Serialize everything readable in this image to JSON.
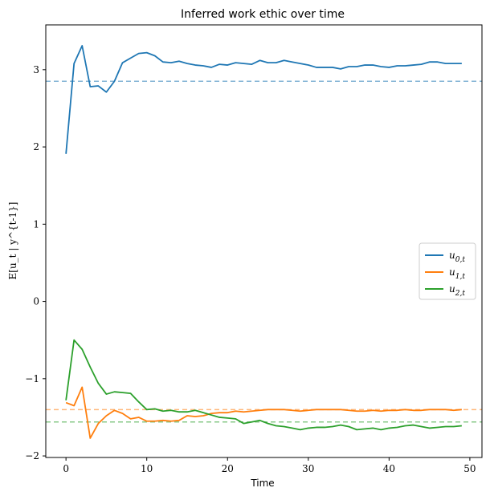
{
  "chart_data": {
    "type": "line",
    "title": "Inferred work ethic over time",
    "xlabel": "Time",
    "ylabel": "E[u_t | y^{t-1}]",
    "xlim": [
      -2.5,
      51.5
    ],
    "ylim": [
      -2.02,
      3.58
    ],
    "xticks": [
      0,
      10,
      20,
      30,
      40,
      50
    ],
    "yticks": [
      -2,
      -1,
      0,
      1,
      2,
      3
    ],
    "xtick_labels": [
      "0",
      "10",
      "20",
      "30",
      "40",
      "50"
    ],
    "ytick_labels": [
      "−2",
      "−1",
      "0",
      "1",
      "2",
      "3"
    ],
    "grid": false,
    "legend_position": "center-right",
    "x": [
      0,
      1,
      2,
      3,
      4,
      5,
      6,
      7,
      8,
      9,
      10,
      11,
      12,
      13,
      14,
      15,
      16,
      17,
      18,
      19,
      20,
      21,
      22,
      23,
      24,
      25,
      26,
      27,
      28,
      29,
      30,
      31,
      32,
      33,
      34,
      35,
      36,
      37,
      38,
      39,
      40,
      41,
      42,
      43,
      44,
      45,
      46,
      47,
      48,
      49
    ],
    "series": [
      {
        "name": "u_{0,t}",
        "color": "#1f77b4",
        "values": [
          1.91,
          3.08,
          3.31,
          2.78,
          2.79,
          2.71,
          2.85,
          3.09,
          3.15,
          3.21,
          3.22,
          3.18,
          3.1,
          3.09,
          3.11,
          3.08,
          3.06,
          3.05,
          3.03,
          3.07,
          3.06,
          3.09,
          3.08,
          3.07,
          3.12,
          3.09,
          3.09,
          3.12,
          3.1,
          3.08,
          3.06,
          3.03,
          3.03,
          3.03,
          3.01,
          3.04,
          3.04,
          3.06,
          3.06,
          3.04,
          3.03,
          3.05,
          3.05,
          3.06,
          3.07,
          3.1,
          3.1,
          3.08,
          3.08,
          3.08
        ]
      },
      {
        "name": "u_{1,t}",
        "color": "#ff7f0e",
        "values": [
          -1.31,
          -1.35,
          -1.11,
          -1.77,
          -1.58,
          -1.48,
          -1.41,
          -1.45,
          -1.52,
          -1.5,
          -1.55,
          -1.55,
          -1.54,
          -1.55,
          -1.54,
          -1.48,
          -1.49,
          -1.48,
          -1.45,
          -1.44,
          -1.44,
          -1.42,
          -1.43,
          -1.42,
          -1.41,
          -1.4,
          -1.4,
          -1.4,
          -1.41,
          -1.42,
          -1.41,
          -1.4,
          -1.4,
          -1.4,
          -1.4,
          -1.41,
          -1.42,
          -1.42,
          -1.41,
          -1.42,
          -1.41,
          -1.41,
          -1.4,
          -1.41,
          -1.41,
          -1.4,
          -1.4,
          -1.4,
          -1.41,
          -1.4
        ]
      },
      {
        "name": "u_{2,t}",
        "color": "#2ca02c",
        "values": [
          -1.28,
          -0.5,
          -0.62,
          -0.85,
          -1.06,
          -1.2,
          -1.17,
          -1.18,
          -1.19,
          -1.3,
          -1.4,
          -1.39,
          -1.42,
          -1.41,
          -1.43,
          -1.43,
          -1.41,
          -1.44,
          -1.47,
          -1.5,
          -1.51,
          -1.52,
          -1.58,
          -1.56,
          -1.54,
          -1.58,
          -1.61,
          -1.62,
          -1.64,
          -1.66,
          -1.64,
          -1.63,
          -1.63,
          -1.62,
          -1.6,
          -1.62,
          -1.66,
          -1.65,
          -1.64,
          -1.66,
          -1.64,
          -1.63,
          -1.61,
          -1.6,
          -1.62,
          -1.64,
          -1.63,
          -1.62,
          -1.62,
          -1.61
        ]
      }
    ],
    "reference_lines": [
      {
        "y": 2.85,
        "color": "#1f77b4",
        "style": "dashed"
      },
      {
        "y": -1.4,
        "color": "#ff7f0e",
        "style": "dashed"
      },
      {
        "y": -1.56,
        "color": "#2ca02c",
        "style": "dashed"
      }
    ]
  }
}
